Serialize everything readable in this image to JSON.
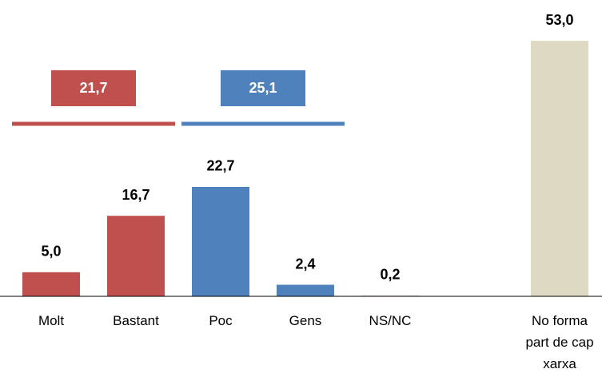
{
  "chart_data": {
    "type": "bar",
    "categories": [
      "Molt",
      "Bastant",
      "Poc",
      "Gens",
      "NS/NC",
      null,
      "No forma part de cap xarxa"
    ],
    "values": [
      5.0,
      16.7,
      22.7,
      2.4,
      0.2,
      null,
      53.0
    ],
    "value_labels": [
      "5,0",
      "16,7",
      "22,7",
      "2,4",
      "0,2",
      null,
      "53,0"
    ],
    "colors": [
      "#c0504d",
      "#c0504d",
      "#4f81bd",
      "#4f81bd",
      "#ddd9c3",
      null,
      "#ddd9c3"
    ],
    "ylim": [
      0,
      56
    ],
    "groups": [
      {
        "value": 21.7,
        "value_label": "21,7",
        "color": "#c0504d",
        "categories": [
          "Molt",
          "Bastant"
        ]
      },
      {
        "value": 25.1,
        "value_label": "25,1",
        "color": "#4f81bd",
        "categories": [
          "Poc",
          "Gens"
        ]
      }
    ]
  }
}
